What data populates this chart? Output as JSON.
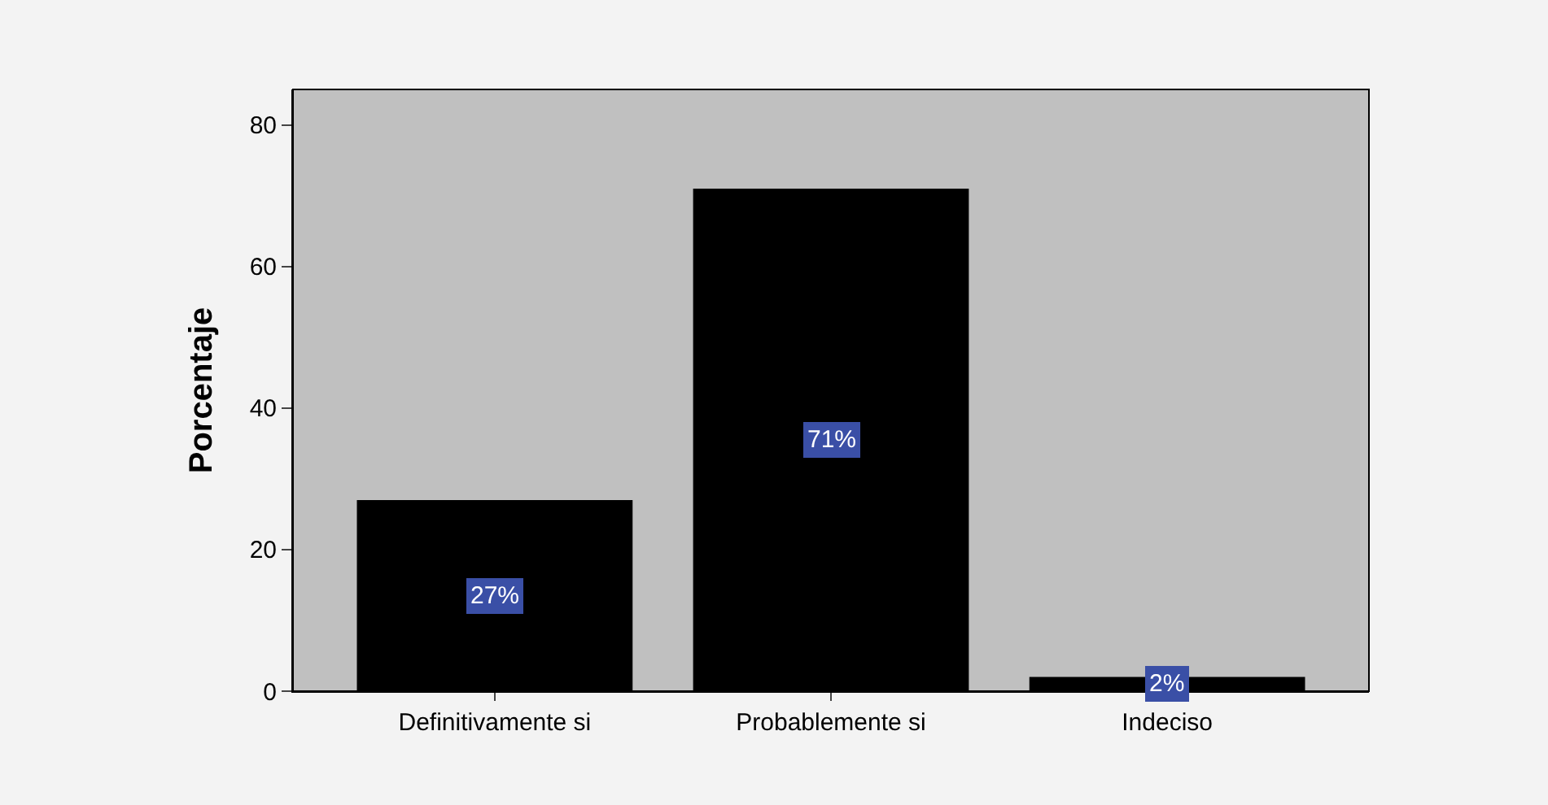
{
  "chart_data": {
    "type": "bar",
    "ylabel": "Porcentaje",
    "categories": [
      "Definitivamente si",
      "Probablemente si",
      "Indeciso"
    ],
    "values": [
      27,
      71,
      2
    ],
    "value_labels": [
      "27%",
      "71%",
      "2%"
    ],
    "color": "#000000",
    "ylim": [
      0,
      85
    ],
    "yticks": [
      0,
      20,
      40,
      60,
      80
    ],
    "grid": false,
    "legend": false
  }
}
